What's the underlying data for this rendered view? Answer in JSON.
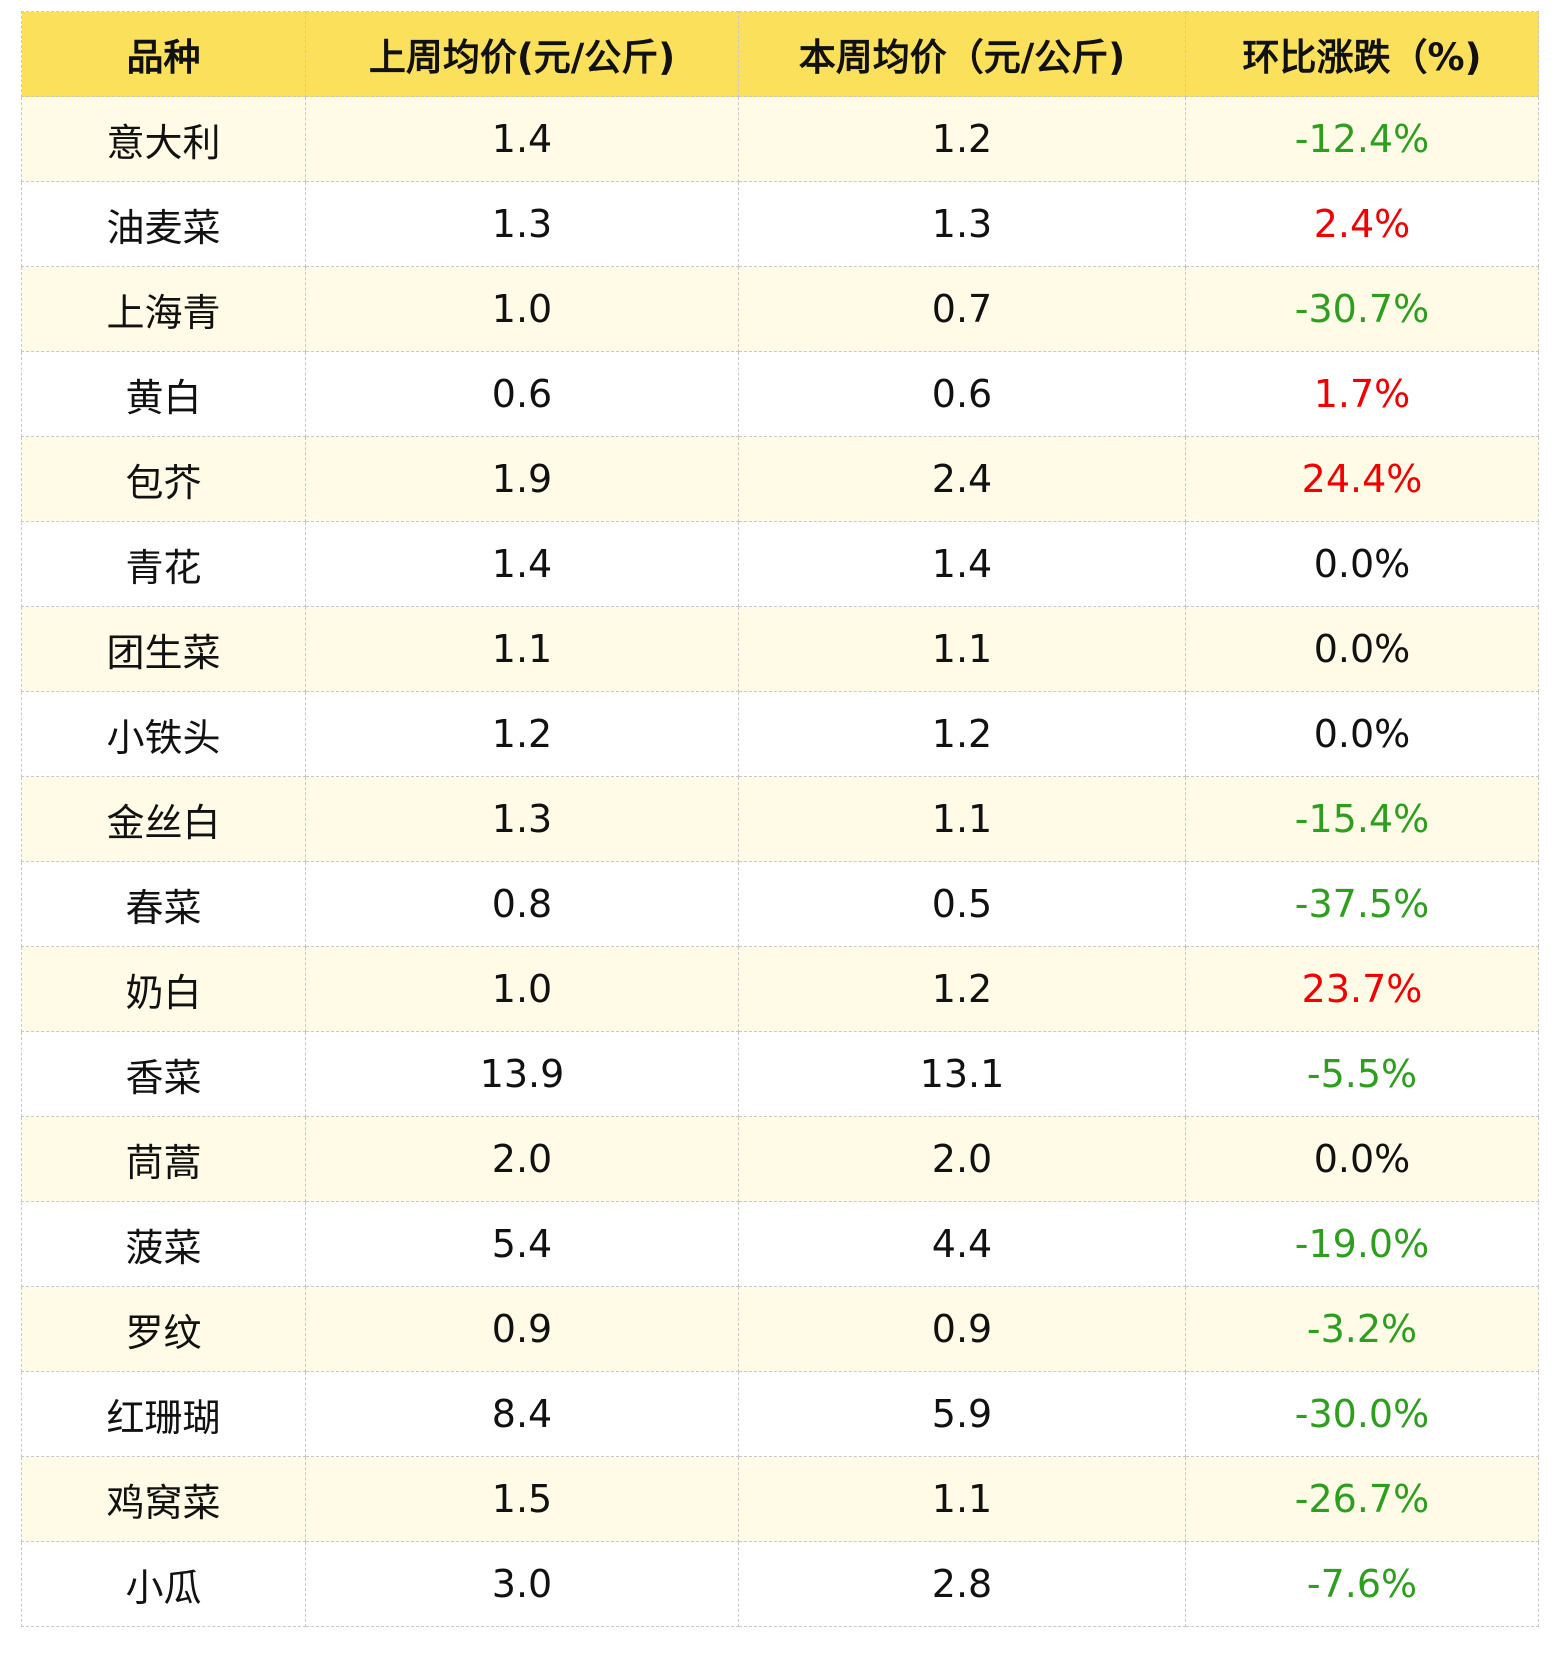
{
  "table": {
    "header": [
      "品种",
      "上周均价(元/公斤)",
      "本周均价（元/公斤)",
      "环比涨跌（%)"
    ],
    "rows": [
      [
        "意大利",
        "1.4",
        "1.2",
        "-12.4%"
      ],
      [
        "油麦菜",
        "1.3",
        "1.3",
        "2.4%"
      ],
      [
        "上海青",
        "1.0",
        "0.7",
        "-30.7%"
      ],
      [
        "黄白",
        "0.6",
        "0.6",
        "1.7%"
      ],
      [
        "包芥",
        "1.9",
        "2.4",
        "24.4%"
      ],
      [
        "青花",
        "1.4",
        "1.4",
        "0.0%"
      ],
      [
        "团生菜",
        "1.1",
        "1.1",
        "0.0%"
      ],
      [
        "小铁头",
        "1.2",
        "1.2",
        "0.0%"
      ],
      [
        "金丝白",
        "1.3",
        "1.1",
        "-15.4%"
      ],
      [
        "春菜",
        "0.8",
        "0.5",
        "-37.5%"
      ],
      [
        "奶白",
        "1.0",
        "1.2",
        "23.7%"
      ],
      [
        "香菜",
        "13.9",
        "13.1",
        "-5.5%"
      ],
      [
        "茼蒿",
        "2.0",
        "2.0",
        "0.0%"
      ],
      [
        "菠菜",
        "5.4",
        "4.4",
        "-19.0%"
      ],
      [
        "罗纹",
        "0.9",
        "0.9",
        "-3.2%"
      ],
      [
        "红珊瑚",
        "8.4",
        "5.9",
        "-30.0%"
      ],
      [
        "鸡窝菜",
        "1.5",
        "1.1",
        "-26.7%"
      ],
      [
        "小瓜",
        "3.0",
        "2.8",
        "-7.6%"
      ]
    ]
  }
}
